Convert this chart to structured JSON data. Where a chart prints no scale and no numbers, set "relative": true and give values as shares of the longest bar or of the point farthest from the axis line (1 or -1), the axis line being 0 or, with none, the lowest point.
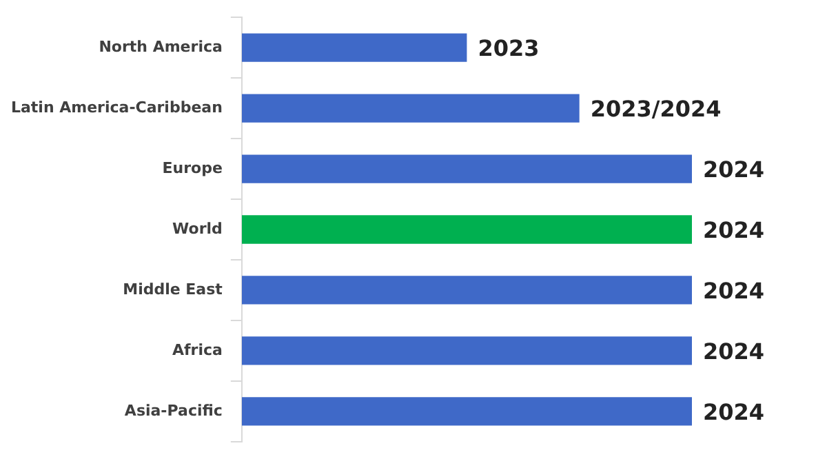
{
  "chart_data": {
    "type": "bar",
    "orientation": "horizontal",
    "relative": true,
    "categories": [
      "North America",
      "Latin America-Caribbean",
      "Europe",
      "World",
      "Middle East",
      "Africa",
      "Asia-Pacific"
    ],
    "values": [
      0.5,
      0.75,
      1,
      1,
      1,
      1,
      1
    ],
    "colors": [
      "#3f69c8",
      "#3f69c8",
      "#3f69c8",
      "#00b050",
      "#3f69c8",
      "#3f69c8",
      "#3f69c8"
    ],
    "annotations": [
      {
        "text": "2023",
        "x": 0.5,
        "y": "North America"
      },
      {
        "text": "2023/2024",
        "x": 0.75,
        "y": "Latin America-Caribbean"
      },
      {
        "text": "2024",
        "x": 1,
        "y": "Europe"
      },
      {
        "text": "2024",
        "x": 1,
        "y": "World"
      },
      {
        "text": "2024",
        "x": 1,
        "y": "Middle East"
      },
      {
        "text": "2024",
        "x": 1,
        "y": "Africa"
      },
      {
        "text": "2024",
        "x": 1,
        "y": "Asia-Pacific"
      }
    ],
    "legend": false
  }
}
